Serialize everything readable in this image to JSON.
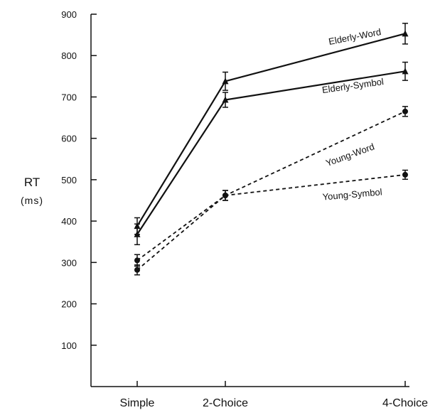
{
  "chart_data": {
    "type": "line",
    "title": "",
    "xlabel": "",
    "ylabel": "RT",
    "ylabel_unit": "(ms)",
    "categories": [
      "Simple",
      "2-Choice",
      "4-Choice"
    ],
    "x": [
      0,
      1,
      2
    ],
    "ylim": [
      0,
      900
    ],
    "yticks": [
      100,
      200,
      300,
      400,
      500,
      600,
      700,
      800,
      900
    ],
    "grid": false,
    "legend": "inline labels",
    "series": [
      {
        "name": "Elderly-Word",
        "values": [
          388,
          738,
          853
        ],
        "errors": [
          20,
          22,
          25
        ],
        "style": "solid",
        "marker": "triangle"
      },
      {
        "name": "Elderly-Symbol",
        "values": [
          368,
          693,
          762
        ],
        "errors": [
          25,
          18,
          22
        ],
        "style": "solid",
        "marker": "triangle"
      },
      {
        "name": "Young-Word",
        "values": [
          305,
          462,
          665
        ],
        "errors": [
          14,
          12,
          12
        ],
        "style": "dashed",
        "marker": "circle"
      },
      {
        "name": "Young-Symbol",
        "values": [
          282,
          462,
          512
        ],
        "errors": [
          12,
          12,
          11
        ],
        "style": "dashed",
        "marker": "circle"
      }
    ],
    "color": "#111111"
  }
}
